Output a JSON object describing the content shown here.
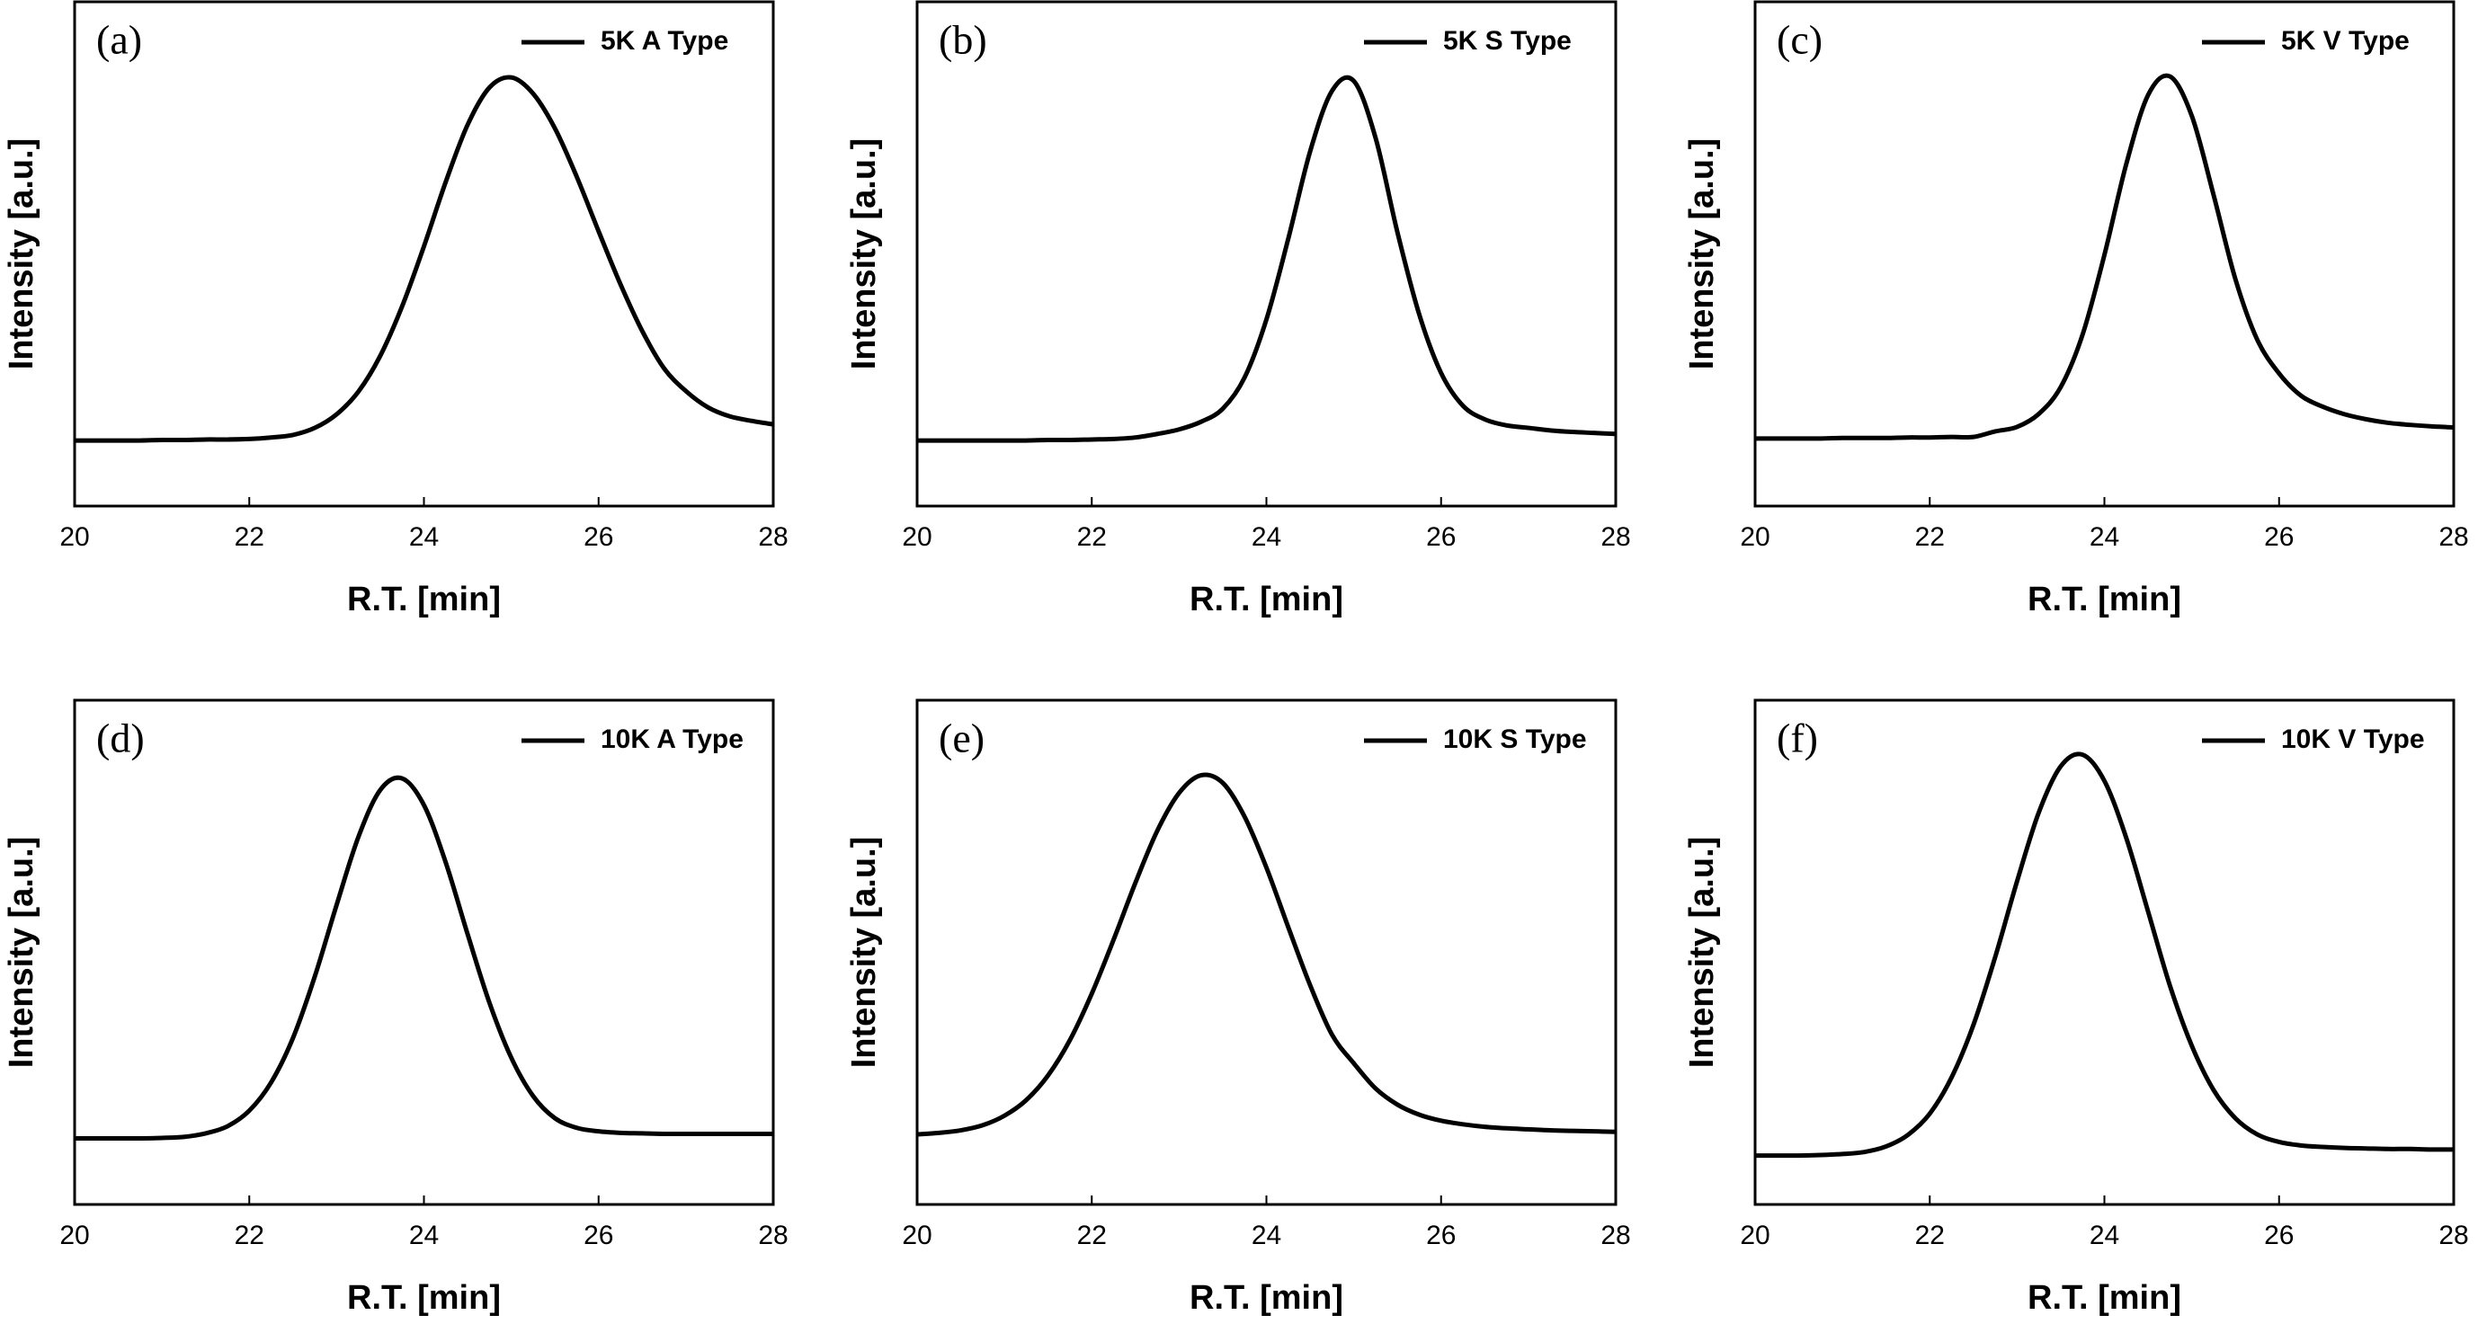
{
  "chart_data": [
    {
      "type": "line",
      "label": "(a)",
      "xlabel": "R.T. [min]",
      "ylabel": "Intensity [a.u.]",
      "x": [
        20,
        20.25,
        20.5,
        20.75,
        21,
        21.25,
        21.5,
        21.75,
        22,
        22.25,
        22.5,
        22.75,
        23,
        23.25,
        23.5,
        23.75,
        24,
        24.25,
        24.5,
        24.75,
        25,
        25.25,
        25.5,
        25.75,
        26,
        26.25,
        26.5,
        26.75,
        27,
        27.25,
        27.5,
        27.75,
        28
      ],
      "series": [
        {
          "name": "5K A Type",
          "color": "#000000",
          "values": [
            0.13,
            0.13,
            0.13,
            0.13,
            0.131,
            0.131,
            0.132,
            0.132,
            0.133,
            0.136,
            0.141,
            0.155,
            0.182,
            0.227,
            0.298,
            0.396,
            0.515,
            0.643,
            0.756,
            0.83,
            0.85,
            0.818,
            0.749,
            0.653,
            0.545,
            0.44,
            0.347,
            0.273,
            0.228,
            0.196,
            0.178,
            0.169,
            0.162
          ]
        }
      ],
      "xlim": [
        20,
        28
      ],
      "xticks": [
        20,
        22,
        24,
        26,
        28
      ],
      "ylim": [
        0,
        1
      ],
      "legend": "upper right"
    },
    {
      "type": "line",
      "label": "(b)",
      "xlabel": "R.T. [min]",
      "ylabel": "Intensity [a.u.]",
      "x": [
        20,
        20.25,
        20.5,
        20.75,
        21,
        21.25,
        21.5,
        21.75,
        22,
        22.25,
        22.5,
        22.75,
        23,
        23.25,
        23.5,
        23.75,
        24,
        24.25,
        24.5,
        24.75,
        25,
        25.25,
        25.5,
        25.75,
        26,
        26.25,
        26.5,
        26.75,
        27,
        27.25,
        27.5,
        27.75,
        28
      ],
      "series": [
        {
          "name": "5K S Type",
          "color": "#000000",
          "values": [
            0.13,
            0.13,
            0.13,
            0.13,
            0.13,
            0.13,
            0.131,
            0.131,
            0.132,
            0.133,
            0.136,
            0.143,
            0.152,
            0.167,
            0.193,
            0.255,
            0.37,
            0.53,
            0.703,
            0.823,
            0.843,
            0.73,
            0.543,
            0.38,
            0.264,
            0.199,
            0.172,
            0.16,
            0.155,
            0.15,
            0.147,
            0.145,
            0.143
          ]
        }
      ],
      "xlim": [
        20,
        28
      ],
      "xticks": [
        20,
        22,
        24,
        26,
        28
      ],
      "ylim": [
        0,
        1
      ],
      "legend": "upper right"
    },
    {
      "type": "line",
      "label": "(c)",
      "xlabel": "R.T. [min]",
      "ylabel": "Intensity [a.u.]",
      "x": [
        20,
        20.25,
        20.5,
        20.75,
        21,
        21.25,
        21.5,
        21.75,
        22,
        22.25,
        22.5,
        22.75,
        23,
        23.25,
        23.5,
        23.75,
        24,
        24.25,
        24.5,
        24.75,
        25,
        25.25,
        25.5,
        25.75,
        26,
        26.25,
        26.5,
        26.75,
        27,
        27.25,
        27.5,
        27.75,
        28
      ],
      "series": [
        {
          "name": "5K V Type",
          "color": "#000000",
          "values": [
            0.134,
            0.134,
            0.134,
            0.134,
            0.135,
            0.135,
            0.135,
            0.136,
            0.136,
            0.137,
            0.137,
            0.148,
            0.157,
            0.183,
            0.236,
            0.34,
            0.498,
            0.678,
            0.815,
            0.852,
            0.774,
            0.617,
            0.45,
            0.33,
            0.263,
            0.219,
            0.197,
            0.182,
            0.172,
            0.165,
            0.161,
            0.158,
            0.156
          ]
        }
      ],
      "xlim": [
        20,
        28
      ],
      "xticks": [
        20,
        22,
        24,
        26,
        28
      ],
      "ylim": [
        0,
        1
      ],
      "legend": "upper right"
    },
    {
      "type": "line",
      "label": "(d)",
      "xlabel": "R.T. [min]",
      "ylabel": "Intensity [a.u.]",
      "x": [
        20,
        20.25,
        20.5,
        20.75,
        21,
        21.25,
        21.5,
        21.75,
        22,
        22.25,
        22.5,
        22.75,
        23,
        23.25,
        23.5,
        23.75,
        24,
        24.25,
        24.5,
        24.75,
        25,
        25.25,
        25.5,
        25.75,
        26,
        26.25,
        26.5,
        26.75,
        27,
        27.25,
        27.5,
        27.75,
        28
      ],
      "series": [
        {
          "name": "10K A Type",
          "color": "#000000",
          "values": [
            0.131,
            0.131,
            0.131,
            0.131,
            0.132,
            0.134,
            0.141,
            0.155,
            0.186,
            0.242,
            0.33,
            0.452,
            0.594,
            0.729,
            0.822,
            0.845,
            0.792,
            0.678,
            0.536,
            0.4,
            0.291,
            0.215,
            0.171,
            0.152,
            0.145,
            0.142,
            0.141,
            0.14,
            0.14,
            0.14,
            0.14,
            0.14,
            0.14
          ]
        }
      ],
      "xlim": [
        20,
        28
      ],
      "xticks": [
        20,
        22,
        24,
        26,
        28
      ],
      "ylim": [
        0,
        1
      ],
      "legend": "upper right"
    },
    {
      "type": "line",
      "label": "(e)",
      "xlabel": "R.T. [min]",
      "ylabel": "Intensity [a.u.]",
      "x": [
        20,
        20.25,
        20.5,
        20.75,
        21,
        21.25,
        21.5,
        21.75,
        22,
        22.25,
        22.5,
        22.75,
        23,
        23.25,
        23.5,
        23.75,
        24,
        24.25,
        24.5,
        24.75,
        25,
        25.25,
        25.5,
        25.75,
        26,
        26.25,
        26.5,
        26.75,
        27,
        27.25,
        27.5,
        27.75,
        28
      ],
      "series": [
        {
          "name": "10K S Type",
          "color": "#000000",
          "values": [
            0.139,
            0.142,
            0.147,
            0.157,
            0.176,
            0.207,
            0.256,
            0.326,
            0.418,
            0.525,
            0.638,
            0.741,
            0.816,
            0.851,
            0.836,
            0.769,
            0.668,
            0.55,
            0.435,
            0.337,
            0.28,
            0.23,
            0.198,
            0.178,
            0.166,
            0.159,
            0.154,
            0.151,
            0.149,
            0.147,
            0.146,
            0.145,
            0.144
          ]
        }
      ],
      "xlim": [
        20,
        28
      ],
      "xticks": [
        20,
        22,
        24,
        26,
        28
      ],
      "ylim": [
        0,
        1
      ],
      "legend": "upper right"
    },
    {
      "type": "line",
      "label": "(f)",
      "xlabel": "R.T. [min]",
      "ylabel": "Intensity [a.u.]",
      "x": [
        20,
        20.25,
        20.5,
        20.75,
        21,
        21.25,
        21.5,
        21.75,
        22,
        22.25,
        22.5,
        22.75,
        23,
        23.25,
        23.5,
        23.75,
        24,
        24.25,
        24.5,
        24.75,
        25,
        25.25,
        25.5,
        25.75,
        26,
        26.25,
        26.5,
        26.75,
        27,
        27.25,
        27.5,
        27.75,
        28
      ],
      "series": [
        {
          "name": "10K V Type",
          "color": "#000000",
          "values": [
            0.097,
            0.097,
            0.097,
            0.098,
            0.1,
            0.104,
            0.115,
            0.138,
            0.18,
            0.252,
            0.356,
            0.491,
            0.641,
            0.778,
            0.869,
            0.892,
            0.84,
            0.727,
            0.581,
            0.434,
            0.315,
            0.227,
            0.171,
            0.139,
            0.124,
            0.117,
            0.114,
            0.112,
            0.111,
            0.11,
            0.11,
            0.109,
            0.109
          ]
        }
      ],
      "xlim": [
        20,
        28
      ],
      "xticks": [
        20,
        22,
        24,
        26,
        28
      ],
      "ylim": [
        0,
        1
      ],
      "legend": "upper right"
    }
  ]
}
